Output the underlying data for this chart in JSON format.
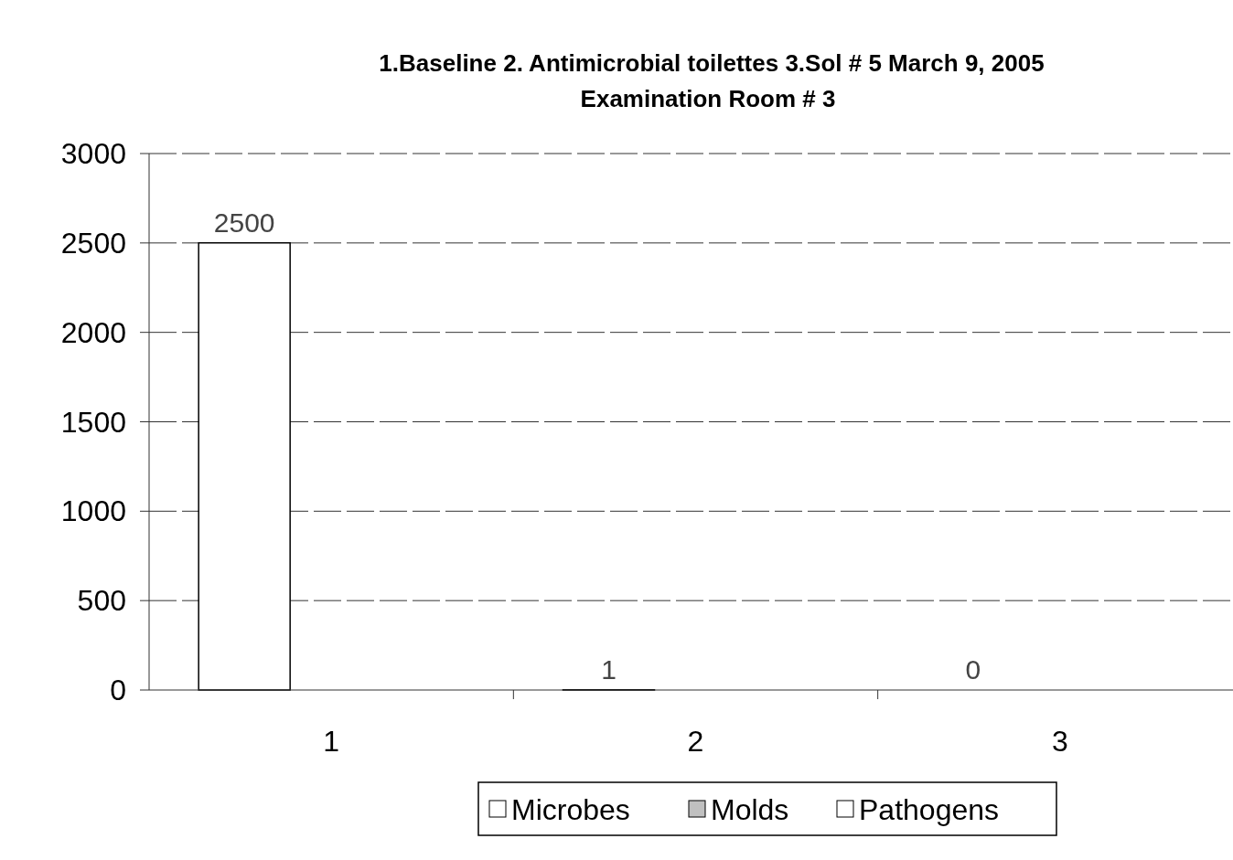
{
  "chart_data": {
    "type": "bar",
    "title": "1.Baseline  2. Antimicrobial toilettes  3.Sol # 5   March 9, 2005",
    "subtitle": "Examination Room # 3",
    "categories": [
      "1",
      "2",
      "3"
    ],
    "series": [
      {
        "name": "Microbes",
        "color": "#ffffff",
        "values": [
          2500,
          1,
          0
        ]
      },
      {
        "name": "Molds",
        "color": "#c0c0c0",
        "values": [
          null,
          null,
          null
        ]
      },
      {
        "name": "Pathogens",
        "color": "#ffffff",
        "values": [
          null,
          null,
          null
        ]
      }
    ],
    "ylim": [
      0,
      3000
    ],
    "yticks": [
      0,
      500,
      1000,
      1500,
      2000,
      2500,
      3000
    ],
    "grid": "y",
    "legend": "bottom",
    "data_labels": true
  }
}
